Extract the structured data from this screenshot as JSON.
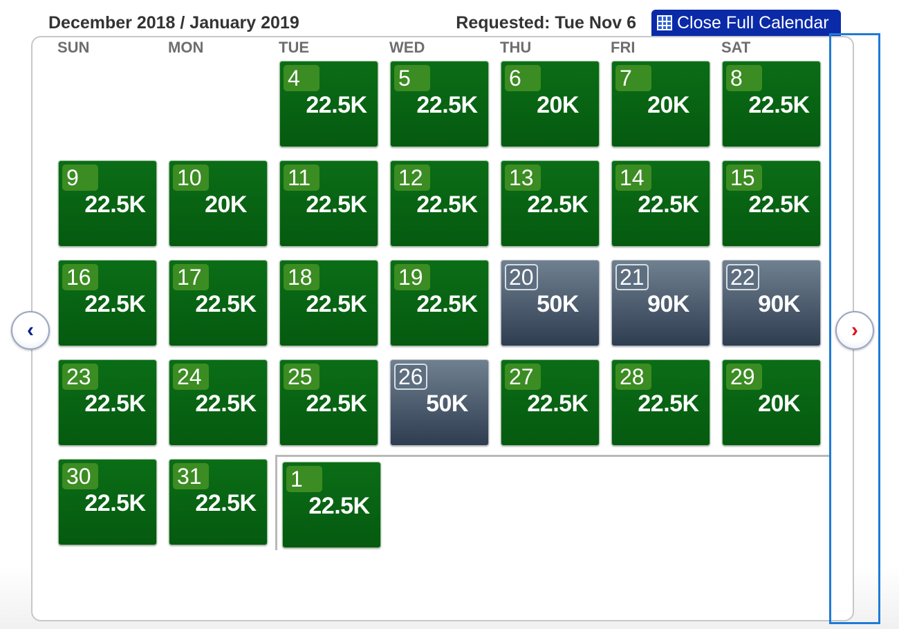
{
  "header": {
    "month_title": "December 2018 / January 2019",
    "requested": "Requested: Tue Nov 6",
    "close_button": "Close Full Calendar"
  },
  "weekdays": [
    "SUN",
    "MON",
    "TUE",
    "WED",
    "THU",
    "FRI",
    "SAT"
  ],
  "colors": {
    "available": "#066114",
    "premium": "#3a4a5e",
    "nav_prev": "#0a1f8a",
    "nav_next": "#e2141b",
    "button": "#0a2aa8"
  },
  "nav": {
    "prev_icon": "chevron-left-icon",
    "next_icon": "chevron-right-icon",
    "prev_glyph": "‹",
    "next_glyph": "›"
  },
  "december_days": [
    {
      "day": "4",
      "price": "22.5K",
      "status": "available"
    },
    {
      "day": "5",
      "price": "22.5K",
      "status": "available"
    },
    {
      "day": "6",
      "price": "20K",
      "status": "available"
    },
    {
      "day": "7",
      "price": "20K",
      "status": "available"
    },
    {
      "day": "8",
      "price": "22.5K",
      "status": "available"
    },
    {
      "day": "9",
      "price": "22.5K",
      "status": "available"
    },
    {
      "day": "10",
      "price": "20K",
      "status": "available"
    },
    {
      "day": "11",
      "price": "22.5K",
      "status": "available"
    },
    {
      "day": "12",
      "price": "22.5K",
      "status": "available"
    },
    {
      "day": "13",
      "price": "22.5K",
      "status": "available"
    },
    {
      "day": "14",
      "price": "22.5K",
      "status": "available"
    },
    {
      "day": "15",
      "price": "22.5K",
      "status": "available"
    },
    {
      "day": "16",
      "price": "22.5K",
      "status": "available"
    },
    {
      "day": "17",
      "price": "22.5K",
      "status": "available"
    },
    {
      "day": "18",
      "price": "22.5K",
      "status": "available"
    },
    {
      "day": "19",
      "price": "22.5K",
      "status": "available"
    },
    {
      "day": "20",
      "price": "50K",
      "status": "premium"
    },
    {
      "day": "21",
      "price": "90K",
      "status": "premium"
    },
    {
      "day": "22",
      "price": "90K",
      "status": "premium"
    },
    {
      "day": "23",
      "price": "22.5K",
      "status": "available"
    },
    {
      "day": "24",
      "price": "22.5K",
      "status": "available"
    },
    {
      "day": "25",
      "price": "22.5K",
      "status": "available"
    },
    {
      "day": "26",
      "price": "50K",
      "status": "premium"
    },
    {
      "day": "27",
      "price": "22.5K",
      "status": "available"
    },
    {
      "day": "28",
      "price": "22.5K",
      "status": "available"
    },
    {
      "day": "29",
      "price": "20K",
      "status": "available"
    },
    {
      "day": "30",
      "price": "22.5K",
      "status": "available"
    },
    {
      "day": "31",
      "price": "22.5K",
      "status": "available"
    }
  ],
  "january_days": [
    {
      "day": "1",
      "price": "22.5K",
      "status": "available"
    }
  ]
}
